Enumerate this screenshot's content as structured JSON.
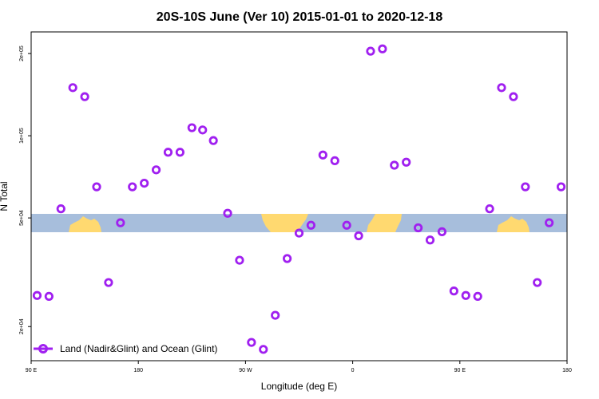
{
  "chart_data": {
    "type": "scatter",
    "title": "20S-10S June (Ver 10)   2015-01-01 to 2020-12-18",
    "xlabel": "Longitude (deg E)",
    "ylabel": "N Total",
    "y_scale": "log",
    "x_tick_labels": [
      "90 E",
      "180",
      "90 W",
      "0",
      "90 E",
      "180"
    ],
    "y_tick_labels": [
      "2e+04",
      "5e+04",
      "1e+05",
      "2e+05"
    ],
    "y_ticks": [
      20000,
      50000,
      100000,
      200000
    ],
    "x_ticks": [
      90,
      180,
      270,
      360,
      450,
      540
    ],
    "xlim": [
      90,
      540
    ],
    "ylim": [
      15000,
      240000
    ],
    "marker_color": "#a020f0",
    "land_color": "#ffd970",
    "ocean_color": "#a7bedc",
    "legend_position": "bottom-left",
    "series": [
      {
        "name": "Land (Nadir&Glint) and Ocean (Glint)",
        "x": [
          95,
          105,
          115,
          125,
          135,
          145,
          155,
          165,
          175,
          185,
          195,
          205,
          215,
          225,
          234,
          243,
          255,
          265,
          275,
          285,
          295,
          305,
          315,
          325,
          335,
          345,
          355,
          365,
          375,
          385,
          395,
          405,
          415,
          425,
          435,
          445,
          455,
          465,
          475,
          485,
          495,
          505,
          515,
          525,
          535
        ],
        "y": [
          26000,
          25800,
          54000,
          150000,
          139000,
          65000,
          29000,
          48000,
          65000,
          67000,
          75000,
          87000,
          87000,
          107000,
          105000,
          96000,
          52000,
          35000,
          17500,
          16500,
          22000,
          35500,
          44000,
          47000,
          85000,
          81000,
          47000,
          43000,
          204000,
          208000,
          78000,
          80000,
          46000,
          41500,
          44500,
          27000,
          26000,
          25800,
          54000,
          150000,
          139000,
          65000,
          29000,
          48000,
          65000
        ]
      }
    ]
  }
}
